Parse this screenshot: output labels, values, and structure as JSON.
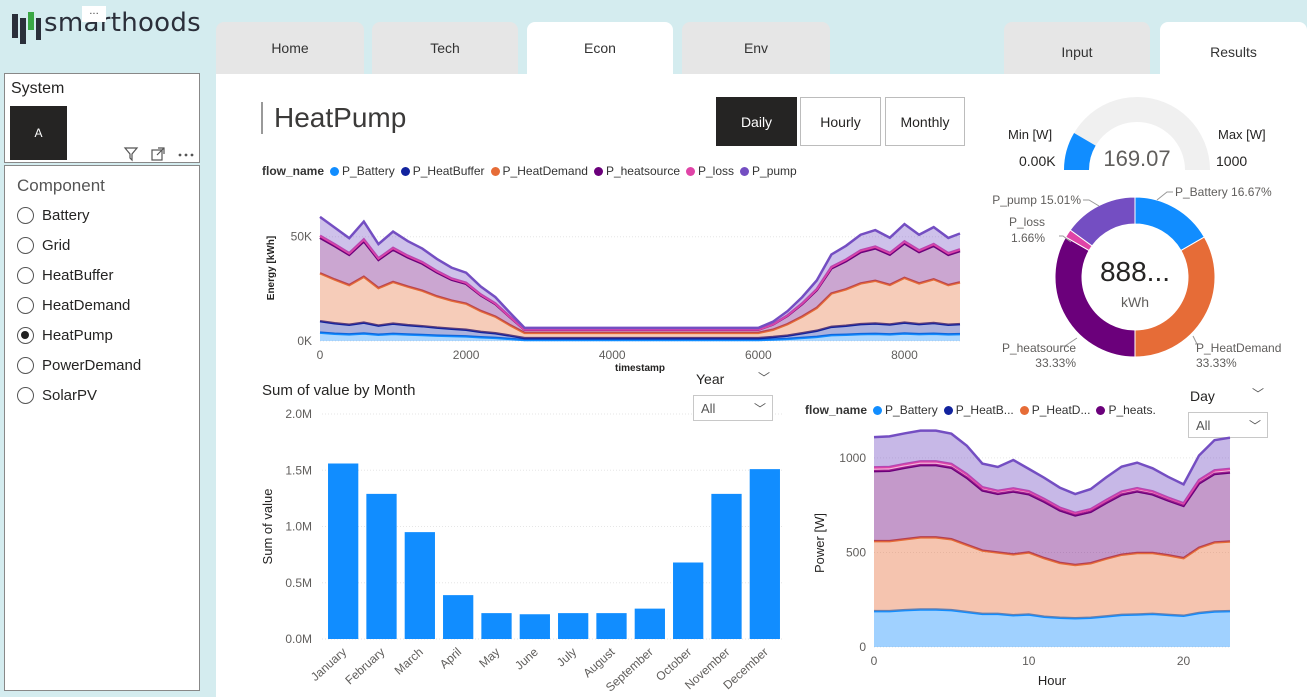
{
  "logo": {
    "text": "smarthoods",
    "menu_dots": "..."
  },
  "tabs": [
    {
      "label": "Home"
    },
    {
      "label": "Tech"
    },
    {
      "label": "Econ"
    },
    {
      "label": "Env"
    },
    {
      "label": "Input"
    },
    {
      "label": "Results"
    }
  ],
  "active_tab": "Econ",
  "system_slicer": {
    "title": "System",
    "selected": "A"
  },
  "component_slicer": {
    "title": "Component",
    "items": [
      "Battery",
      "Grid",
      "HeatBuffer",
      "HeatDemand",
      "HeatPump",
      "PowerDemand",
      "SolarPV"
    ],
    "selected": "HeatPump"
  },
  "page_title": "HeatPump",
  "granularity_buttons": {
    "daily": "Daily",
    "hourly": "Hourly",
    "monthly": "Monthly",
    "active": "Daily"
  },
  "gauge": {
    "min_label": "Min [W]",
    "max_label": "Max [W]",
    "min_value": "0.00K",
    "max_value": "1000",
    "value_text": "169.07",
    "value": 169.07,
    "min": 0,
    "max": 1000
  },
  "donut": {
    "center_value": "888...",
    "center_unit": "kWh",
    "slices": [
      {
        "name": "P_Battery",
        "label": "P_Battery 16.67%",
        "percent": 16.67,
        "color": "#118DFF"
      },
      {
        "name": "P_HeatDemand",
        "label": "P_HeatDemand",
        "pct_label": "33.33%",
        "percent": 33.33,
        "color": "#E66C37"
      },
      {
        "name": "P_heatsource",
        "label": "P_heatsource",
        "pct_label": "33.33%",
        "percent": 33.33,
        "color": "#6B007B"
      },
      {
        "name": "P_loss",
        "label": "P_loss",
        "pct_label": "1.66%",
        "percent": 1.66,
        "color": "#E044A7"
      },
      {
        "name": "P_pump",
        "label": "P_pump 15.01%",
        "percent": 15.01,
        "color": "#744EC2"
      }
    ]
  },
  "colors": {
    "P_Battery": "#118DFF",
    "P_HeatBuffer": "#12239E",
    "P_HeatDemand": "#E66C37",
    "P_heatsource": "#6B007B",
    "P_loss": "#E044A7",
    "P_pump": "#744EC2"
  },
  "timeseries_legend": {
    "title": "flow_name",
    "items": [
      "P_Battery",
      "P_HeatBuffer",
      "P_HeatDemand",
      "P_heatsource",
      "P_loss",
      "P_pump"
    ]
  },
  "hourly_legend": {
    "title": "flow_name",
    "items": [
      {
        "key": "P_Battery",
        "label": "P_Battery"
      },
      {
        "key": "P_HeatBuffer",
        "label": "P_HeatB..."
      },
      {
        "key": "P_HeatDemand",
        "label": "P_HeatD..."
      },
      {
        "key": "P_heatsource",
        "label": "P_heats."
      }
    ]
  },
  "year_slicer": {
    "label": "Year",
    "value": "All"
  },
  "day_slicer": {
    "label": "Day",
    "value": "All"
  },
  "chart_data": [
    {
      "type": "area",
      "title": "",
      "xlabel": "timestamp",
      "ylabel": "Energy [kWh]",
      "xlim": [
        0,
        8760
      ],
      "ylim": [
        0,
        70000
      ],
      "x_ticks": [
        0,
        2000,
        4000,
        6000,
        8000
      ],
      "y_ticks": [
        {
          "value": 0,
          "label": "0K"
        },
        {
          "value": 50000,
          "label": "50K"
        }
      ],
      "x": [
        0,
        200,
        400,
        600,
        800,
        1000,
        1200,
        1400,
        1600,
        1800,
        2000,
        2200,
        2400,
        2600,
        2800,
        3000,
        4000,
        5000,
        6000,
        6200,
        6400,
        6600,
        6800,
        7000,
        7200,
        7400,
        7600,
        7800,
        8000,
        8200,
        8400,
        8600,
        8760
      ],
      "series": [
        {
          "name": "P_Battery",
          "values": [
            4000,
            3500,
            3200,
            3600,
            3000,
            3400,
            3100,
            2900,
            2600,
            2400,
            2200,
            1800,
            1500,
            1000,
            500,
            500,
            500,
            500,
            500,
            700,
            1000,
            1500,
            2000,
            2800,
            3000,
            3300,
            3400,
            3200,
            3600,
            3300,
            3500,
            3200,
            3300
          ]
        },
        {
          "name": "P_HeatBuffer",
          "values": [
            5500,
            5000,
            4600,
            5200,
            4400,
            4900,
            4500,
            4200,
            3800,
            3500,
            3200,
            2600,
            2200,
            1600,
            900,
            900,
            900,
            900,
            900,
            1200,
            1600,
            2200,
            2900,
            4000,
            4300,
            4800,
            5000,
            4700,
            5200,
            4800,
            5100,
            4600,
            4800
          ]
        },
        {
          "name": "P_HeatDemand",
          "values": [
            23000,
            21000,
            19000,
            22000,
            18000,
            20000,
            18500,
            17000,
            15000,
            13500,
            12500,
            10000,
            8000,
            5000,
            2500,
            2500,
            2500,
            2500,
            2500,
            3500,
            5500,
            8000,
            11000,
            16000,
            17500,
            19500,
            20500,
            19000,
            21500,
            19500,
            21000,
            19000,
            20000
          ]
        },
        {
          "name": "P_heatsource",
          "values": [
            17000,
            16000,
            14500,
            17000,
            13500,
            15500,
            14000,
            13000,
            11500,
            10000,
            9500,
            7500,
            6000,
            3800,
            1500,
            1500,
            1500,
            1500,
            1500,
            2500,
            4000,
            6000,
            8500,
            12000,
            13500,
            15000,
            15500,
            14500,
            16500,
            15000,
            16000,
            14500,
            15000
          ]
        },
        {
          "name": "P_loss",
          "values": [
            1000,
            900,
            800,
            950,
            750,
            850,
            800,
            720,
            650,
            580,
            540,
            430,
            350,
            230,
            100,
            100,
            100,
            100,
            100,
            150,
            240,
            350,
            480,
            680,
            750,
            850,
            880,
            820,
            930,
            850,
            900,
            820,
            850
          ]
        },
        {
          "name": "P_pump",
          "values": [
            9000,
            8000,
            7200,
            8500,
            6800,
            7800,
            7000,
            6500,
            5800,
            5200,
            4800,
            3800,
            3000,
            1900,
            800,
            800,
            800,
            800,
            800,
            1200,
            2000,
            3000,
            4200,
            6000,
            6600,
            7500,
            7900,
            7300,
            8300,
            7500,
            8100,
            7300,
            7600
          ]
        }
      ]
    },
    {
      "type": "bar",
      "title": "Sum of value by Month",
      "xlabel": "",
      "ylabel": "Sum of value",
      "ylim": [
        0,
        2000000
      ],
      "y_ticks": [
        {
          "value": 0,
          "label": "0.0M"
        },
        {
          "value": 500000,
          "label": "0.5M"
        },
        {
          "value": 1000000,
          "label": "1.0M"
        },
        {
          "value": 1500000,
          "label": "1.5M"
        },
        {
          "value": 2000000,
          "label": "2.0M"
        }
      ],
      "categories": [
        "January",
        "February",
        "March",
        "April",
        "May",
        "June",
        "July",
        "August",
        "September",
        "October",
        "November",
        "December"
      ],
      "values": [
        1560000,
        1290000,
        950000,
        390000,
        230000,
        220000,
        230000,
        230000,
        270000,
        680000,
        1290000,
        1510000
      ],
      "color": "#118DFF"
    },
    {
      "type": "area",
      "title": "",
      "xlabel": "Hour",
      "ylabel": "Power [W]",
      "xlim": [
        0,
        23
      ],
      "ylim": [
        0,
        1100
      ],
      "x_ticks": [
        0,
        10,
        20
      ],
      "y_ticks": [
        {
          "value": 0,
          "label": "0"
        },
        {
          "value": 500,
          "label": "500"
        },
        {
          "value": 1000,
          "label": "1000"
        }
      ],
      "x": [
        0,
        1,
        2,
        3,
        4,
        5,
        6,
        7,
        8,
        9,
        10,
        11,
        12,
        13,
        14,
        15,
        16,
        17,
        18,
        19,
        20,
        21,
        22,
        23
      ],
      "series": [
        {
          "name": "P_Battery",
          "values": [
            190,
            190,
            195,
            198,
            198,
            195,
            185,
            175,
            175,
            168,
            172,
            160,
            155,
            152,
            155,
            162,
            170,
            172,
            175,
            170,
            165,
            180,
            188,
            190
          ]
        },
        {
          "name": "P_HeatDemand",
          "values": [
            370,
            370,
            375,
            382,
            382,
            375,
            355,
            335,
            325,
            322,
            328,
            310,
            290,
            282,
            288,
            305,
            318,
            325,
            322,
            315,
            305,
            345,
            365,
            368
          ]
        },
        {
          "name": "P_heatsource",
          "values": [
            370,
            372,
            378,
            382,
            382,
            378,
            355,
            318,
            310,
            332,
            308,
            298,
            278,
            262,
            272,
            295,
            318,
            326,
            310,
            290,
            276,
            340,
            362,
            365
          ]
        },
        {
          "name": "P_loss",
          "values": [
            20,
            20,
            20,
            20,
            20,
            20,
            19,
            17,
            16,
            17,
            16,
            15,
            14,
            13,
            14,
            15,
            16,
            17,
            16,
            15,
            14,
            18,
            19,
            19
          ]
        },
        {
          "name": "P_pump",
          "values": [
            160,
            162,
            162,
            162,
            162,
            160,
            150,
            125,
            126,
            150,
            118,
            112,
            106,
            100,
            106,
            120,
            132,
            135,
            122,
            110,
            100,
            130,
            160,
            165
          ]
        }
      ]
    }
  ]
}
